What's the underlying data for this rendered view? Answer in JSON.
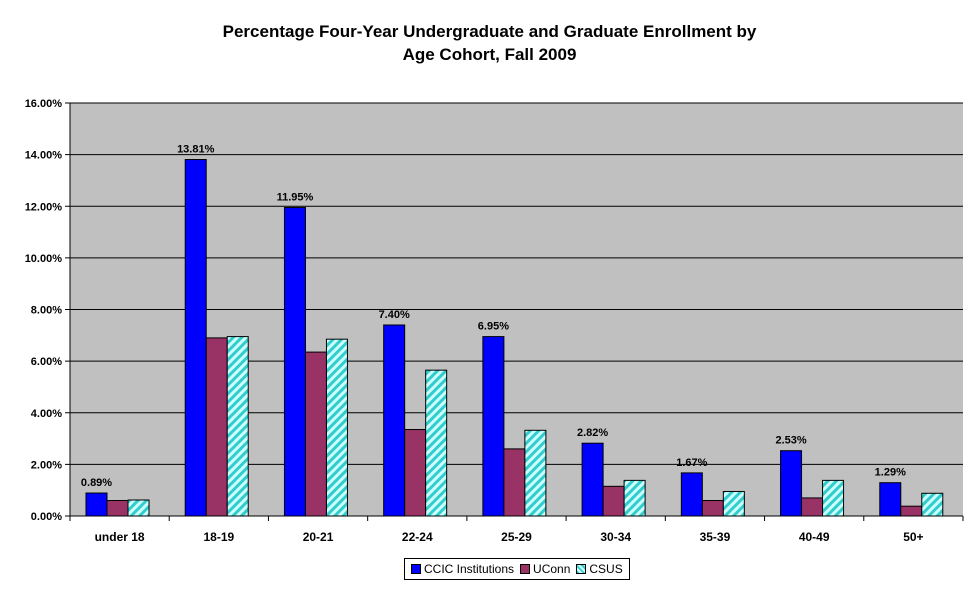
{
  "chart_data": {
    "type": "bar",
    "title_lines": [
      "Percentage Four-Year Undergraduate and Graduate Enrollment by",
      "Age Cohort, Fall 2009"
    ],
    "categories": [
      "under 18",
      "18-19",
      "20-21",
      "22-24",
      "25-29",
      "30-34",
      "35-39",
      "40-49",
      "50+"
    ],
    "series": [
      {
        "name": "CCIC Institutions",
        "color": "#0000ff",
        "pattern": "solid",
        "values": [
          0.89,
          13.81,
          11.95,
          7.4,
          6.95,
          2.82,
          1.67,
          2.53,
          1.29
        ]
      },
      {
        "name": "UConn",
        "color": "#993366",
        "pattern": "solid",
        "values": [
          0.6,
          6.9,
          6.35,
          3.35,
          2.6,
          1.15,
          0.6,
          0.7,
          0.38
        ]
      },
      {
        "name": "CSUS",
        "color": "#ccffff",
        "stripe_color": "#33cccc",
        "pattern": "diagonal-hatch",
        "values": [
          0.62,
          6.95,
          6.85,
          5.65,
          3.32,
          1.38,
          0.95,
          1.38,
          0.88
        ]
      }
    ],
    "data_labels": [
      "0.89%",
      "13.81%",
      "11.95%",
      "7.40%",
      "6.95%",
      "2.82%",
      "1.67%",
      "2.53%",
      "1.29%"
    ],
    "y_ticks": [
      "0.00%",
      "2.00%",
      "4.00%",
      "6.00%",
      "8.00%",
      "10.00%",
      "12.00%",
      "14.00%",
      "16.00%"
    ],
    "ylim": [
      0,
      16
    ],
    "y_step": 2,
    "grid": true,
    "plot_background": "#c0c0c0",
    "legend_position": "bottom"
  }
}
